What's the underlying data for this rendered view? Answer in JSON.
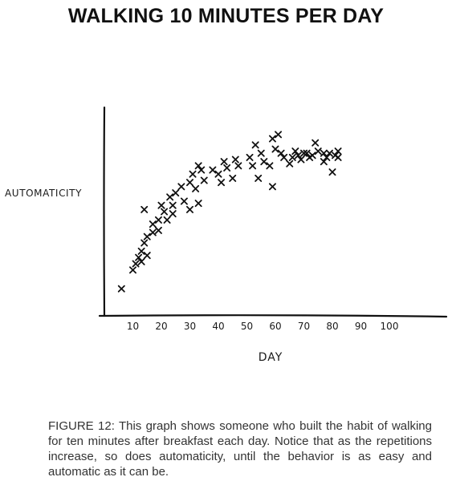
{
  "chart_data": {
    "type": "scatter",
    "title": "WALKING 10 MINUTES PER DAY",
    "xlabel": "DAY",
    "ylabel": "AUTOMATICITY",
    "xlim": [
      0,
      110
    ],
    "ylim": [
      0,
      1
    ],
    "x_ticks": [
      "10",
      "20",
      "30",
      "40",
      "50",
      "60",
      "70",
      "80",
      "90",
      "100"
    ],
    "grid": false,
    "marker": "x",
    "color": "#111111",
    "points": [
      [
        6,
        0.13
      ],
      [
        10,
        0.22
      ],
      [
        11,
        0.25
      ],
      [
        12,
        0.28
      ],
      [
        13,
        0.31
      ],
      [
        13,
        0.26
      ],
      [
        14,
        0.35
      ],
      [
        14,
        0.51
      ],
      [
        15,
        0.29
      ],
      [
        15,
        0.38
      ],
      [
        17,
        0.4
      ],
      [
        17,
        0.44
      ],
      [
        19,
        0.41
      ],
      [
        19,
        0.46
      ],
      [
        20,
        0.53
      ],
      [
        21,
        0.5
      ],
      [
        22,
        0.46
      ],
      [
        23,
        0.57
      ],
      [
        24,
        0.49
      ],
      [
        24,
        0.53
      ],
      [
        25,
        0.59
      ],
      [
        27,
        0.62
      ],
      [
        28,
        0.55
      ],
      [
        30,
        0.51
      ],
      [
        30,
        0.64
      ],
      [
        31,
        0.68
      ],
      [
        32,
        0.61
      ],
      [
        33,
        0.54
      ],
      [
        33,
        0.72
      ],
      [
        34,
        0.7
      ],
      [
        35,
        0.65
      ],
      [
        38,
        0.7
      ],
      [
        40,
        0.68
      ],
      [
        41,
        0.64
      ],
      [
        42,
        0.74
      ],
      [
        43,
        0.71
      ],
      [
        45,
        0.66
      ],
      [
        46,
        0.75
      ],
      [
        47,
        0.72
      ],
      [
        51,
        0.76
      ],
      [
        52,
        0.72
      ],
      [
        53,
        0.82
      ],
      [
        54,
        0.66
      ],
      [
        55,
        0.78
      ],
      [
        56,
        0.74
      ],
      [
        58,
        0.72
      ],
      [
        59,
        0.62
      ],
      [
        59,
        0.85
      ],
      [
        60,
        0.8
      ],
      [
        61,
        0.87
      ],
      [
        62,
        0.78
      ],
      [
        63,
        0.76
      ],
      [
        65,
        0.73
      ],
      [
        66,
        0.76
      ],
      [
        67,
        0.79
      ],
      [
        68,
        0.77
      ],
      [
        69,
        0.75
      ],
      [
        70,
        0.78
      ],
      [
        71,
        0.78
      ],
      [
        72,
        0.76
      ],
      [
        73,
        0.77
      ],
      [
        74,
        0.83
      ],
      [
        75,
        0.79
      ],
      [
        77,
        0.74
      ],
      [
        77,
        0.78
      ],
      [
        78,
        0.76
      ],
      [
        79,
        0.78
      ],
      [
        80,
        0.69
      ],
      [
        81,
        0.77
      ],
      [
        82,
        0.79
      ],
      [
        82,
        0.76
      ]
    ]
  },
  "caption": "FIGURE 12: This graph shows someone who built the habit of walking for ten minutes after breakfast each day. Notice that as the repetitions increase, so does automaticity, until the behavior is as easy and automatic as it can be."
}
